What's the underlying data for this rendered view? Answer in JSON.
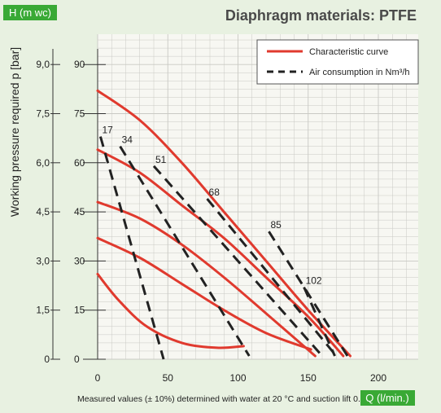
{
  "chart_data": {
    "type": "line",
    "title": "Diaphragm materials: PTFE",
    "ylabel_outer": "Working pressure required p [bar]",
    "ylabel_badge": "H (m wc)",
    "xlabel_badge": "Q (l/min.)",
    "footnote": "Measured values (± 10%) determined with water at 20 °C and suction lift 0.",
    "x_ticks": [
      "0",
      "50",
      "100",
      "150",
      "200"
    ],
    "x_tick_values": [
      0,
      50,
      100,
      150,
      200
    ],
    "h_ticks": [
      "0",
      "15",
      "30",
      "45",
      "60",
      "75",
      "90"
    ],
    "h_tick_values": [
      0,
      15,
      30,
      45,
      60,
      75,
      90
    ],
    "p_ticks": [
      "0",
      "1,5",
      "3,0",
      "4,5",
      "6,0",
      "7,5",
      "9,0"
    ],
    "xlim": [
      0,
      230
    ],
    "ylim": [
      0,
      95
    ],
    "grid": true,
    "legend": {
      "position": "top-right",
      "entries": [
        {
          "label": "Characteristic curve",
          "style": "solid",
          "color": "#e03a2e"
        },
        {
          "label": "Air consumption in Nm³/h",
          "style": "dashed",
          "color": "#222222"
        }
      ]
    },
    "series": [
      {
        "style": "solid",
        "color": "#e03a2e",
        "points": [
          [
            0,
            82
          ],
          [
            30,
            73
          ],
          [
            60,
            60
          ],
          [
            90,
            45
          ],
          [
            120,
            30
          ],
          [
            150,
            15
          ],
          [
            180,
            1
          ]
        ]
      },
      {
        "style": "solid",
        "color": "#e03a2e",
        "points": [
          [
            0,
            64
          ],
          [
            30,
            57
          ],
          [
            60,
            47
          ],
          [
            90,
            37
          ],
          [
            120,
            25
          ],
          [
            150,
            13
          ],
          [
            175,
            1
          ]
        ]
      },
      {
        "style": "solid",
        "color": "#e03a2e",
        "points": [
          [
            0,
            48
          ],
          [
            30,
            43
          ],
          [
            60,
            35
          ],
          [
            90,
            25
          ],
          [
            120,
            14
          ],
          [
            155,
            1
          ]
        ]
      },
      {
        "style": "solid",
        "color": "#e03a2e",
        "points": [
          [
            0,
            37
          ],
          [
            30,
            31
          ],
          [
            60,
            23
          ],
          [
            90,
            15
          ],
          [
            120,
            8
          ],
          [
            152,
            3
          ]
        ]
      },
      {
        "style": "solid",
        "color": "#e03a2e",
        "points": [
          [
            0,
            26
          ],
          [
            15,
            18
          ],
          [
            35,
            10
          ],
          [
            60,
            5
          ],
          [
            85,
            3.5
          ],
          [
            104,
            4
          ]
        ]
      }
    ],
    "air_consumption": [
      {
        "label": "17",
        "points": [
          [
            2,
            68
          ],
          [
            47,
            0
          ]
        ]
      },
      {
        "label": "34",
        "points": [
          [
            16,
            65
          ],
          [
            108,
            1
          ]
        ]
      },
      {
        "label": "51",
        "points": [
          [
            40,
            59
          ],
          [
            160,
            1
          ]
        ]
      },
      {
        "label": "68",
        "points": [
          [
            78,
            49
          ],
          [
            170,
            1
          ]
        ]
      },
      {
        "label": "85",
        "points": [
          [
            122,
            39
          ],
          [
            178,
            1
          ]
        ]
      },
      {
        "label": "102",
        "points": [
          [
            147,
            22
          ],
          [
            169,
            1
          ]
        ]
      }
    ]
  },
  "colors": {
    "accent_green": "#39a935",
    "curve_red": "#e03a2e",
    "dash_black": "#222222",
    "plot_bg": "#f7f7f2",
    "page_bg": "#e8f1e1",
    "grid": "#c9c9c4"
  }
}
